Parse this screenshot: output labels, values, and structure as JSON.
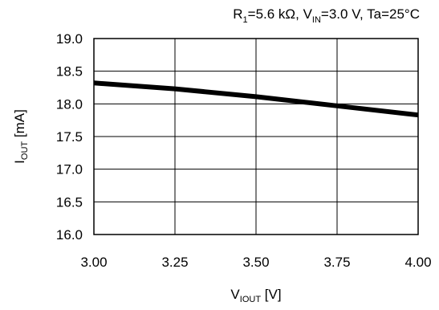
{
  "chart_data": {
    "type": "line",
    "title": {
      "r1_main": "R",
      "r1_sub": "1",
      "r1_rest": "=5.6 kΩ, V",
      "vin_sub": "IN",
      "vin_rest": "=3.0 V, Ta=25°C"
    },
    "xlabel": {
      "main": "V",
      "sub": "IOUT",
      "rest": " [V]"
    },
    "ylabel": {
      "main": "I",
      "sub": "OUT",
      "rest": " [mA]"
    },
    "xlim": [
      3.0,
      4.0
    ],
    "ylim": [
      16.0,
      19.0
    ],
    "x_ticks": [
      3.0,
      3.25,
      3.5,
      3.75,
      4.0
    ],
    "x_tick_labels": [
      "3.00",
      "3.25",
      "3.50",
      "3.75",
      "4.00"
    ],
    "y_ticks": [
      16.0,
      16.5,
      17.0,
      17.5,
      18.0,
      18.5,
      19.0
    ],
    "y_tick_labels": [
      "16.0",
      "16.5",
      "17.0",
      "17.5",
      "18.0",
      "18.5",
      "19.0"
    ],
    "grid": true,
    "series": [
      {
        "x": [
          3.0,
          3.25,
          3.5,
          3.75,
          4.0
        ],
        "y": [
          18.32,
          18.23,
          18.11,
          17.97,
          17.83
        ],
        "color": "#000000"
      }
    ]
  }
}
